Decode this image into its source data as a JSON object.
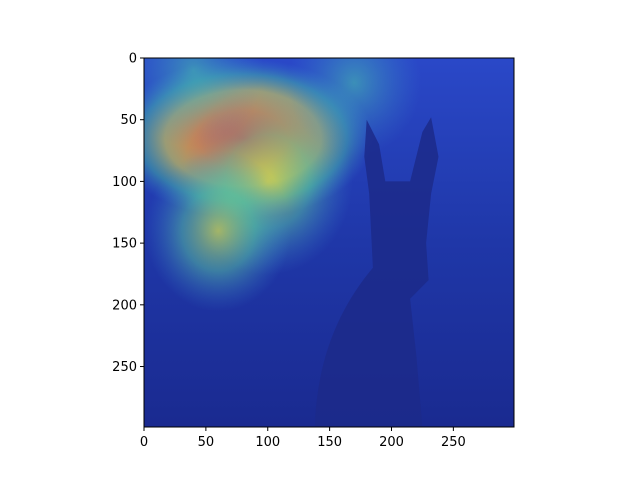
{
  "chart_data": {
    "type": "heatmap",
    "description_free": true,
    "xlim": [
      0,
      299
    ],
    "ylim": [
      299,
      0
    ],
    "x_ticks": [
      0,
      50,
      100,
      150,
      200,
      250
    ],
    "y_ticks": [
      0,
      50,
      100,
      150,
      200,
      250
    ],
    "x_tick_labels": [
      "0",
      "50",
      "100",
      "150",
      "200",
      "250"
    ],
    "y_tick_labels": [
      "0",
      "50",
      "100",
      "150",
      "200",
      "250"
    ],
    "colormap": "jet",
    "colors": {
      "low": "#1a2f9e",
      "mid": "#2fb89a",
      "high": "#e8563a",
      "axis": "#000000"
    },
    "hotspots": [
      {
        "x": 80,
        "y": 65,
        "intensity": 1.0
      },
      {
        "x": 100,
        "y": 100,
        "intensity": 0.75
      },
      {
        "x": 60,
        "y": 140,
        "intensity": 0.55
      },
      {
        "x": 40,
        "y": 10,
        "intensity": 0.5
      },
      {
        "x": 170,
        "y": 20,
        "intensity": 0.45
      }
    ]
  }
}
